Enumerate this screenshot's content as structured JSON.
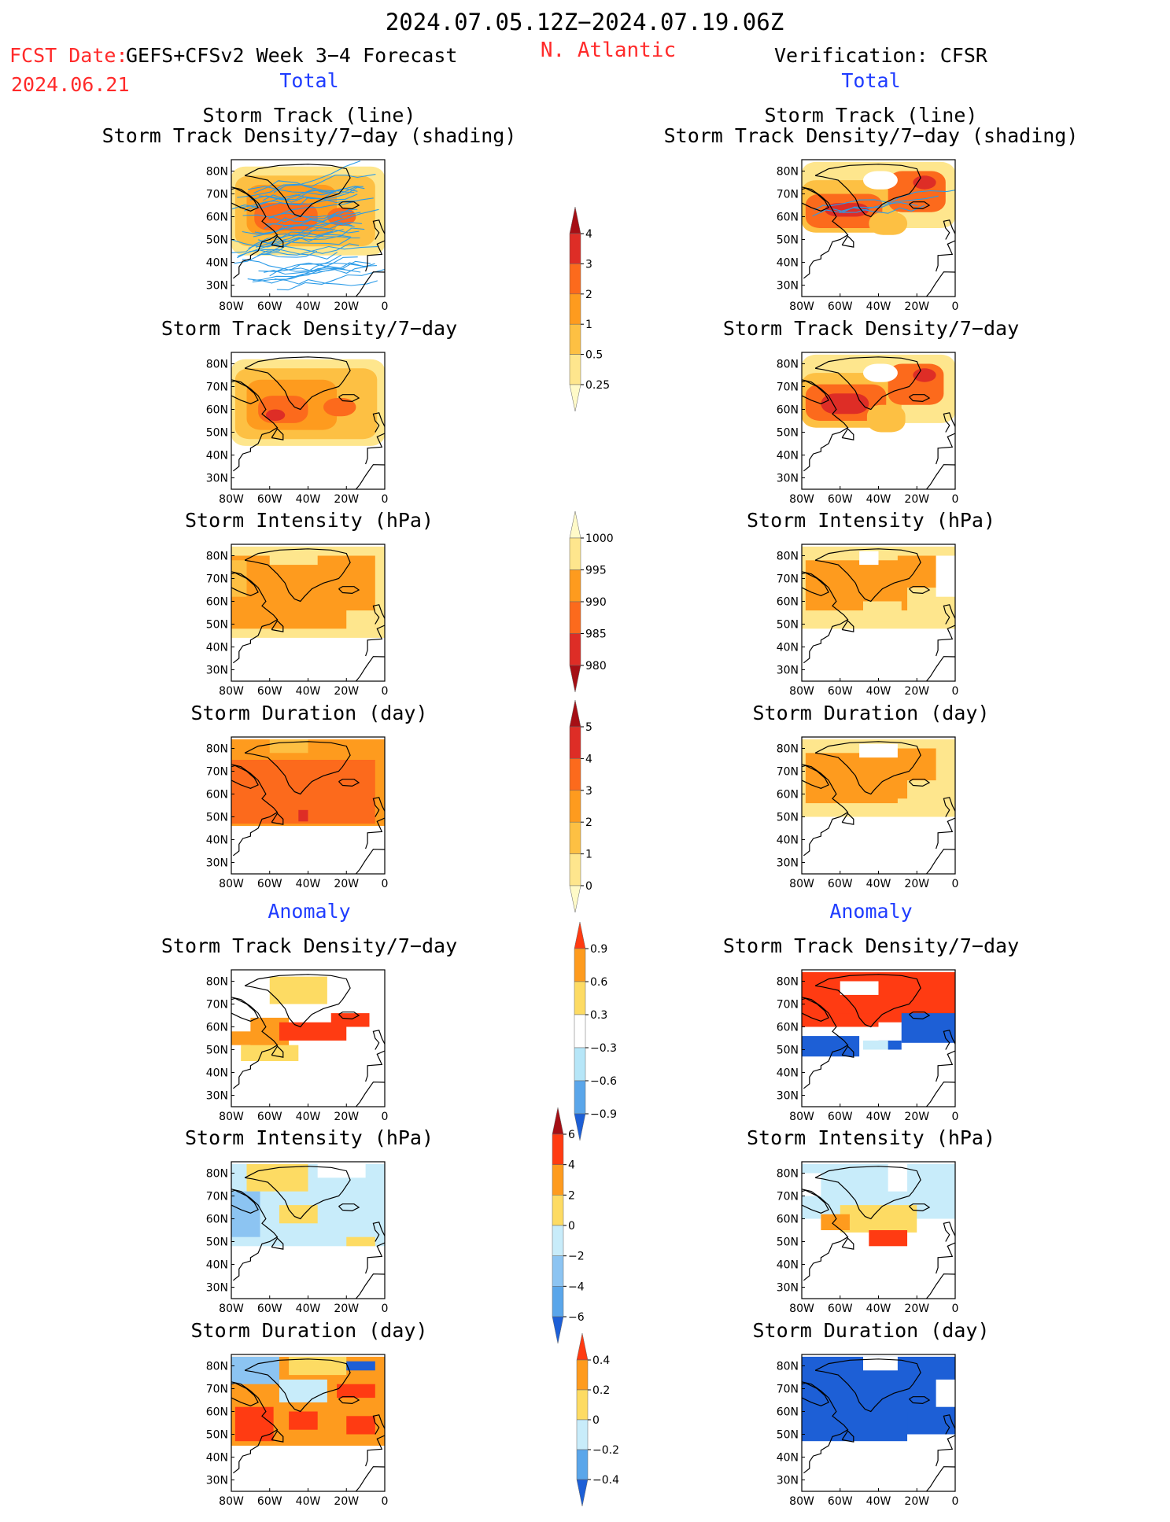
{
  "header": {
    "date_range": "2024.07.05.12Z−2024.07.19.06Z",
    "fcst_date_label": "FCST Date:",
    "model_label": "GEFS+CFSv2 Week 3−4 Forecast",
    "fcst_date_value": "2024.06.21",
    "region": "N. Atlantic",
    "verification_label": "Verification: CFSR"
  },
  "sections": {
    "total_left": "Total",
    "total_right": "Total",
    "anomaly_left": "Anomaly",
    "anomaly_right": "Anomaly"
  },
  "panel_titles": {
    "track_line": "Storm Track (line)",
    "track_shading": "Storm Track Density/7−day (shading)",
    "density": "Storm Track Density/7−day",
    "intensity": "Storm Intensity (hPa)",
    "duration": "Storm Duration (day)"
  },
  "axes": {
    "lat_ticks": [
      "80N",
      "70N",
      "60N",
      "50N",
      "40N",
      "30N"
    ],
    "lon_ticks": [
      "80W",
      "60W",
      "40W",
      "20W",
      "0"
    ]
  },
  "colorbars": [
    {
      "id": "density_total",
      "labels": [
        "4",
        "3",
        "2",
        "1",
        "0.5",
        "0.25"
      ],
      "colors": [
        "#a50f15",
        "#de2d26",
        "#fc6a1c",
        "#fe9b1e",
        "#fdc043",
        "#fee68d",
        "#fffac8"
      ]
    },
    {
      "id": "intensity_total",
      "labels": [
        "1000",
        "995",
        "990",
        "985",
        "980"
      ],
      "colors": [
        "#fffac8",
        "#fee68d",
        "#fe9b1e",
        "#fc6a1c",
        "#de2d26",
        "#a50f15"
      ]
    },
    {
      "id": "duration_total",
      "labels": [
        "5",
        "4",
        "3",
        "2",
        "1",
        "0"
      ],
      "colors": [
        "#a50f15",
        "#de2d26",
        "#fc6a1c",
        "#fe9b1e",
        "#fdc043",
        "#fee68d",
        "#fffac8"
      ]
    },
    {
      "id": "density_anom",
      "labels": [
        "0.9",
        "0.6",
        "0.3",
        "−0.3",
        "−0.6",
        "−0.9"
      ],
      "colors": [
        "#ff3b12",
        "#fe9b1e",
        "#fddb63",
        "#ffffff",
        "#b6e6f8",
        "#5aa6ea",
        "#1d5fd6"
      ]
    },
    {
      "id": "intensity_anom",
      "labels": [
        "6",
        "4",
        "2",
        "0",
        "−2",
        "−4",
        "−6"
      ],
      "colors": [
        "#a50f15",
        "#ff3b12",
        "#fe9b1e",
        "#fddb63",
        "#c8ecfa",
        "#8cc4f2",
        "#5aa6ea",
        "#1d5fd6"
      ]
    },
    {
      "id": "duration_anom",
      "labels": [
        "0.4",
        "0.2",
        "0",
        "−0.2",
        "−0.4"
      ],
      "colors": [
        "#ff3b12",
        "#fe9b1e",
        "#fddb63",
        "#c8ecfa",
        "#5aa6ea",
        "#1d5fd6"
      ]
    }
  ],
  "colors": {
    "track_line_forecast": "#2b9be8",
    "track_line_observed": "#2b9be8",
    "header_red": "#ff2a2a",
    "section_blue": "#1f3cff"
  },
  "chart_data": [
    {
      "type": "heatmap",
      "panel": "forecast-track-density-shading",
      "field": "Storm Track Density/7-day",
      "overlay": "storm tracks (line)",
      "lat_range": [
        25,
        85
      ],
      "lon_range": [
        -80,
        0
      ]
    },
    {
      "type": "heatmap",
      "panel": "observed-track-density-shading",
      "field": "Storm Track Density/7-day",
      "overlay": "storm tracks (line)",
      "lat_range": [
        25,
        85
      ],
      "lon_range": [
        -80,
        0
      ]
    },
    {
      "type": "heatmap",
      "panel": "forecast-density",
      "field": "Storm Track Density/7-day",
      "lat_range": [
        25,
        85
      ],
      "lon_range": [
        -80,
        0
      ]
    },
    {
      "type": "heatmap",
      "panel": "observed-density",
      "field": "Storm Track Density/7-day",
      "lat_range": [
        25,
        85
      ],
      "lon_range": [
        -80,
        0
      ]
    },
    {
      "type": "heatmap",
      "panel": "forecast-intensity",
      "field": "Storm Intensity (hPa)",
      "lat_range": [
        25,
        85
      ],
      "lon_range": [
        -80,
        0
      ]
    },
    {
      "type": "heatmap",
      "panel": "observed-intensity",
      "field": "Storm Intensity (hPa)",
      "lat_range": [
        25,
        85
      ],
      "lon_range": [
        -80,
        0
      ]
    },
    {
      "type": "heatmap",
      "panel": "forecast-duration",
      "field": "Storm Duration (day)",
      "lat_range": [
        25,
        85
      ],
      "lon_range": [
        -80,
        0
      ]
    },
    {
      "type": "heatmap",
      "panel": "observed-duration",
      "field": "Storm Duration (day)",
      "lat_range": [
        25,
        85
      ],
      "lon_range": [
        -80,
        0
      ]
    },
    {
      "type": "heatmap",
      "panel": "forecast-density-anomaly",
      "field": "Storm Track Density/7-day anomaly",
      "lat_range": [
        25,
        85
      ],
      "lon_range": [
        -80,
        0
      ]
    },
    {
      "type": "heatmap",
      "panel": "observed-density-anomaly",
      "field": "Storm Track Density/7-day anomaly",
      "lat_range": [
        25,
        85
      ],
      "lon_range": [
        -80,
        0
      ]
    },
    {
      "type": "heatmap",
      "panel": "forecast-intensity-anomaly",
      "field": "Storm Intensity (hPa) anomaly",
      "lat_range": [
        25,
        85
      ],
      "lon_range": [
        -80,
        0
      ]
    },
    {
      "type": "heatmap",
      "panel": "observed-intensity-anomaly",
      "field": "Storm Intensity (hPa) anomaly",
      "lat_range": [
        25,
        85
      ],
      "lon_range": [
        -80,
        0
      ]
    },
    {
      "type": "heatmap",
      "panel": "forecast-duration-anomaly",
      "field": "Storm Duration (day) anomaly",
      "lat_range": [
        25,
        85
      ],
      "lon_range": [
        -80,
        0
      ]
    },
    {
      "type": "heatmap",
      "panel": "observed-duration-anomaly",
      "field": "Storm Duration (day) anomaly",
      "lat_range": [
        25,
        85
      ],
      "lon_range": [
        -80,
        0
      ]
    }
  ]
}
